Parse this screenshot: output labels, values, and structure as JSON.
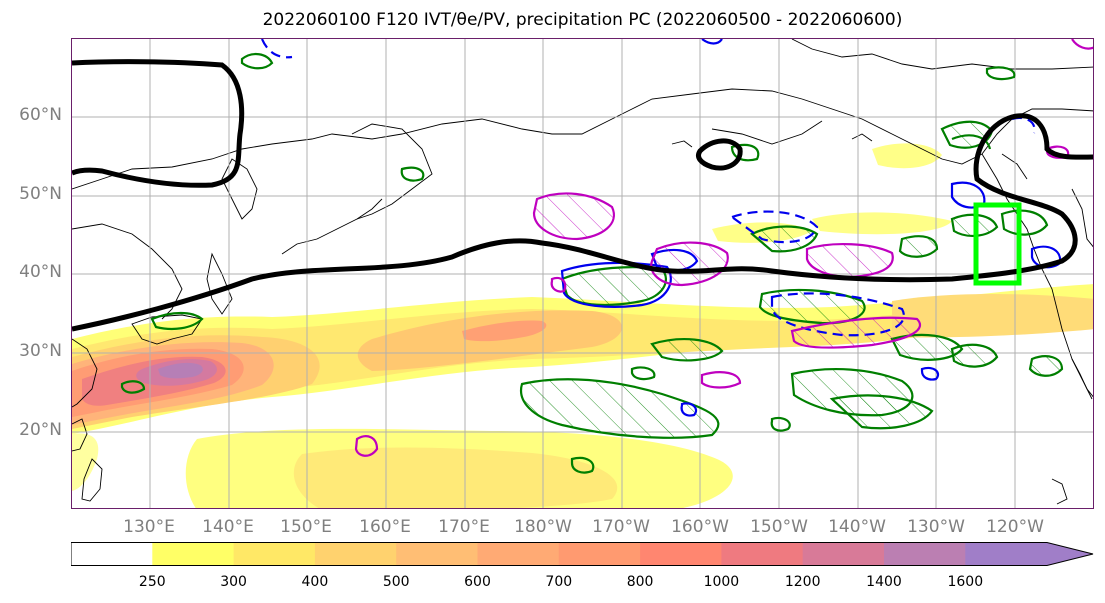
{
  "title": "2022060100 F120 IVT/θe/PV, precipitation PC (2022060500 - 2022060600)",
  "lat_labels": [
    "60°N",
    "50°N",
    "40°N",
    "30°N",
    "20°N"
  ],
  "lon_labels": [
    "130°E",
    "140°E",
    "150°E",
    "160°E",
    "170°E",
    "180°W",
    "170°W",
    "160°W",
    "150°W",
    "140°W",
    "130°W",
    "120°W"
  ],
  "colorbar": {
    "ticks": [
      "250",
      "300",
      "400",
      "500",
      "600",
      "700",
      "800",
      "1000",
      "1200",
      "1400",
      "1600"
    ],
    "colors": [
      "#ffffff",
      "#ffff66",
      "#ffe866",
      "#ffd26e",
      "#ffbe74",
      "#ffaa74",
      "#ff9a70",
      "#ff8670",
      "#ef7a80",
      "#d87a98",
      "#bb7fb2",
      "#a07ec8"
    ]
  },
  "colors": {
    "frame": "#6a1f6a",
    "contour_black": "#000000",
    "contour_green": "#007f00",
    "contour_blue": "#0000ee",
    "contour_magenta": "#bf00bf",
    "box_lime": "#00ff00",
    "grid": "#b0b0b0"
  }
}
